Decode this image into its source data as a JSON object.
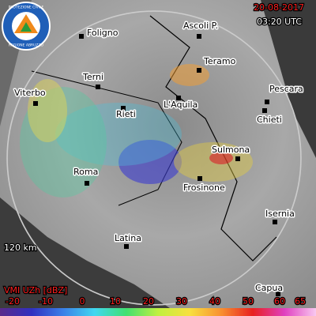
{
  "logo": {
    "top": "PROTEZIONE CIVILE",
    "bottom": "REGIONE ABRUZZO"
  },
  "header": {
    "date": "20-08-2017",
    "time": "03:20 UTC"
  },
  "cities": [
    "Foligno",
    "Ascoli P.",
    "Teramo",
    "Terni",
    "Pescara",
    "Viterbo",
    "Rieti",
    "L'Aquila",
    "Chieti",
    "Sulmona",
    "Roma",
    "Frosinone",
    "Isernia",
    "Latina",
    "Capua"
  ],
  "range_label": "120 km",
  "legend": {
    "title": "VMI UZh [dBZ]",
    "ticks": [
      -20,
      -10,
      0,
      10,
      20,
      30,
      40,
      50,
      60,
      65
    ]
  }
}
